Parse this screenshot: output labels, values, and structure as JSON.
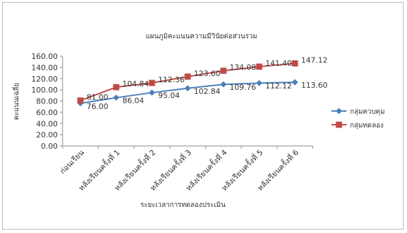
{
  "chart_data": {
    "type": "line",
    "title": "แผนภูมิคะแนนความมีวินัยต่อส่วนรวม",
    "xlabel": "ระยะเวลาการทดลองประเมิน",
    "ylabel": "คะแนนเฉลี่ย",
    "categories": [
      "ก่อนเรียน",
      "หลังเรียนครั้งที่ 1",
      "หลังเรียนครั้งที่ 2",
      "หลังเรียนครั้งที่ 3",
      "หลังเรียนครั้งที่ 4",
      "หลังเรียนครั้งที่ 5",
      "หลังเรียนครั้งที่ 6"
    ],
    "ylim": [
      0,
      160
    ],
    "yticks": [
      "0.00",
      "20.00",
      "40.00",
      "60.00",
      "80.00",
      "100.00",
      "120.00",
      "140.00",
      "160.00"
    ],
    "grid": false,
    "legend_position": "right",
    "series": [
      {
        "name": "กลุ่มควบคุม",
        "color": "#4a7ebb",
        "marker": "diamond",
        "values": [
          76.0,
          86.04,
          95.04,
          102.84,
          109.76,
          112.12,
          113.6
        ],
        "labels": [
          "76.00",
          "86.04",
          "95.04",
          "102.84",
          "109.76",
          "112.12",
          "113.60"
        ]
      },
      {
        "name": "กลุ่มทดลอง",
        "color": "#be4b48",
        "marker": "square",
        "values": [
          81.0,
          104.84,
          112.36,
          123.6,
          134.08,
          141.4,
          147.12
        ],
        "labels": [
          "81.00",
          "104.84",
          "112.36",
          "123.60",
          "134.08",
          "141.40",
          "147.12"
        ]
      }
    ]
  }
}
